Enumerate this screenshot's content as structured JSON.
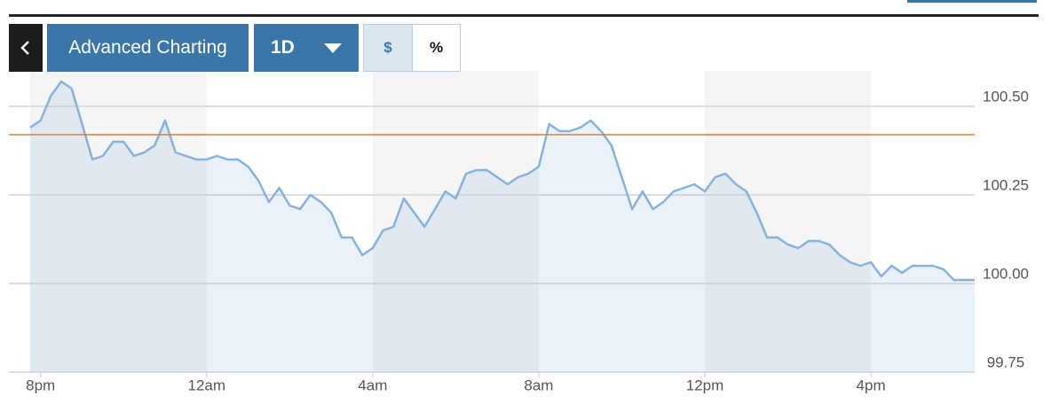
{
  "toolbar": {
    "title": "Advanced Charting",
    "range": "1D",
    "currency": "$",
    "percent": "%"
  },
  "chart_data": {
    "type": "area",
    "categories": [
      null,
      "8pm",
      null,
      null,
      null,
      null,
      null,
      null,
      null,
      null,
      null,
      null,
      null,
      null,
      null,
      null,
      null,
      "12am",
      null,
      null,
      null,
      null,
      null,
      null,
      null,
      null,
      null,
      null,
      null,
      null,
      null,
      null,
      null,
      "4am",
      null,
      null,
      null,
      null,
      null,
      null,
      null,
      null,
      null,
      null,
      null,
      null,
      null,
      null,
      null,
      "8am",
      null,
      null,
      null,
      null,
      null,
      null,
      null,
      null,
      null,
      null,
      null,
      null,
      null,
      null,
      null,
      "12pm",
      null,
      null,
      null,
      null,
      null,
      null,
      null,
      null,
      null,
      null,
      null,
      null,
      null,
      null,
      null,
      "4pm",
      null,
      null,
      null,
      null,
      null,
      null,
      null,
      null,
      null,
      null
    ],
    "values": [
      100.44,
      100.46,
      100.53,
      100.57,
      100.55,
      100.45,
      100.35,
      100.36,
      100.4,
      100.4,
      100.36,
      100.37,
      100.39,
      100.46,
      100.37,
      100.36,
      100.35,
      100.35,
      100.36,
      100.35,
      100.35,
      100.33,
      100.29,
      100.23,
      100.27,
      100.22,
      100.21,
      100.25,
      100.23,
      100.2,
      100.13,
      100.13,
      100.08,
      100.1,
      100.15,
      100.16,
      100.24,
      100.2,
      100.16,
      100.21,
      100.26,
      100.24,
      100.31,
      100.32,
      100.32,
      100.3,
      100.28,
      100.3,
      100.31,
      100.33,
      100.45,
      100.43,
      100.43,
      100.44,
      100.46,
      100.43,
      100.39,
      100.3,
      100.21,
      100.26,
      100.21,
      100.23,
      100.26,
      100.27,
      100.28,
      100.26,
      100.3,
      100.31,
      100.28,
      100.26,
      100.2,
      100.13,
      100.13,
      100.11,
      100.1,
      100.12,
      100.12,
      100.11,
      100.08,
      100.06,
      100.05,
      100.06,
      100.02,
      100.05,
      100.03,
      100.05,
      100.05,
      100.05,
      100.04,
      100.01,
      100.01,
      100.01
    ],
    "color": "#86b2de",
    "reference_line": {
      "value": 100.42,
      "color": "#e07b39"
    },
    "ylim": [
      99.75,
      100.6
    ],
    "yticks": [
      99.75,
      {
        "value": 100,
        "label": "100.00"
      },
      100.25,
      {
        "value": 100.5,
        "label": "100.50"
      }
    ],
    "grid": true
  }
}
